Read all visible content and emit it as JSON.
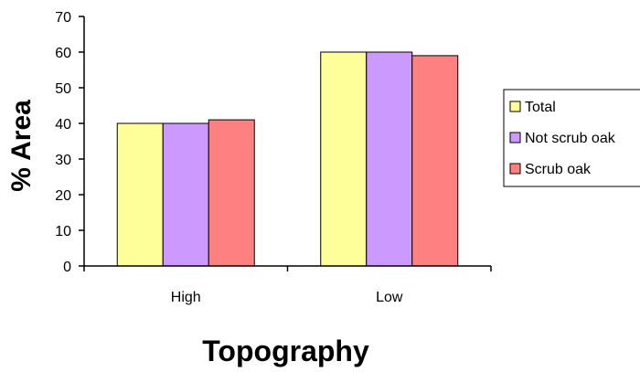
{
  "chart_data": {
    "type": "bar",
    "title": "",
    "xlabel": "Topography",
    "ylabel": "% Area",
    "categories": [
      "High",
      "Low"
    ],
    "series": [
      {
        "name": "Total",
        "values": [
          40,
          60
        ],
        "color": "#FFFF99"
      },
      {
        "name": "Not scrub oak",
        "values": [
          40,
          60
        ],
        "color": "#CC99FF"
      },
      {
        "name": "Scrub oak",
        "values": [
          41,
          59
        ],
        "color": "#FF8080"
      }
    ],
    "ylim": [
      0,
      70
    ],
    "yticks": [
      0,
      10,
      20,
      30,
      40,
      50,
      60,
      70
    ],
    "grid": false,
    "legend_position": "right"
  }
}
